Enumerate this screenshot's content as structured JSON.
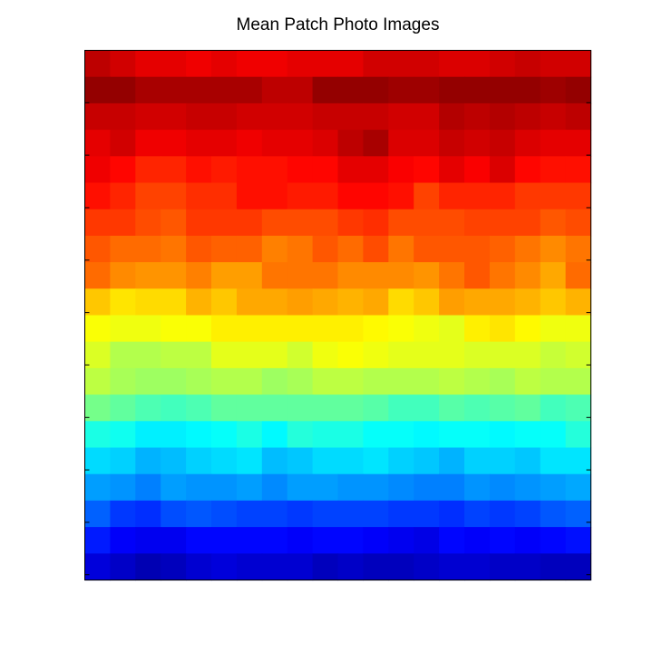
{
  "chart_data": {
    "type": "heatmap",
    "title": "Mean Patch Photo Images",
    "xlabel": "",
    "ylabel": "",
    "colormap": "jet",
    "value_range": [
      0,
      1
    ],
    "grid": false,
    "rows": 20,
    "cols": 20,
    "values": [
      [
        0.94,
        0.92,
        0.9,
        0.9,
        0.89,
        0.9,
        0.89,
        0.89,
        0.9,
        0.9,
        0.9,
        0.92,
        0.92,
        0.92,
        0.91,
        0.91,
        0.92,
        0.93,
        0.92,
        0.92
      ],
      [
        0.98,
        0.98,
        0.96,
        0.96,
        0.96,
        0.96,
        0.96,
        0.94,
        0.94,
        0.98,
        0.98,
        0.98,
        0.97,
        0.97,
        0.98,
        0.98,
        0.98,
        0.98,
        0.97,
        0.98
      ],
      [
        0.93,
        0.93,
        0.92,
        0.92,
        0.93,
        0.93,
        0.92,
        0.92,
        0.92,
        0.93,
        0.93,
        0.93,
        0.92,
        0.92,
        0.95,
        0.94,
        0.95,
        0.94,
        0.93,
        0.94
      ],
      [
        0.9,
        0.92,
        0.89,
        0.89,
        0.9,
        0.9,
        0.89,
        0.9,
        0.9,
        0.91,
        0.94,
        0.96,
        0.91,
        0.91,
        0.93,
        0.92,
        0.93,
        0.91,
        0.9,
        0.9
      ],
      [
        0.89,
        0.87,
        0.84,
        0.84,
        0.86,
        0.85,
        0.86,
        0.86,
        0.87,
        0.87,
        0.9,
        0.9,
        0.88,
        0.87,
        0.9,
        0.88,
        0.91,
        0.87,
        0.86,
        0.86
      ],
      [
        0.86,
        0.84,
        0.81,
        0.81,
        0.83,
        0.83,
        0.86,
        0.86,
        0.85,
        0.85,
        0.87,
        0.87,
        0.86,
        0.81,
        0.84,
        0.84,
        0.84,
        0.82,
        0.82,
        0.82
      ],
      [
        0.82,
        0.82,
        0.8,
        0.79,
        0.82,
        0.82,
        0.82,
        0.8,
        0.8,
        0.8,
        0.82,
        0.83,
        0.8,
        0.8,
        0.8,
        0.81,
        0.81,
        0.81,
        0.79,
        0.8
      ],
      [
        0.79,
        0.77,
        0.77,
        0.76,
        0.79,
        0.78,
        0.78,
        0.75,
        0.76,
        0.79,
        0.77,
        0.8,
        0.76,
        0.79,
        0.79,
        0.79,
        0.78,
        0.76,
        0.74,
        0.76
      ],
      [
        0.77,
        0.74,
        0.73,
        0.73,
        0.75,
        0.72,
        0.72,
        0.76,
        0.76,
        0.76,
        0.74,
        0.74,
        0.74,
        0.73,
        0.76,
        0.79,
        0.76,
        0.74,
        0.71,
        0.77
      ],
      [
        0.68,
        0.65,
        0.66,
        0.66,
        0.7,
        0.68,
        0.71,
        0.71,
        0.72,
        0.71,
        0.7,
        0.71,
        0.66,
        0.68,
        0.72,
        0.71,
        0.71,
        0.7,
        0.68,
        0.7
      ],
      [
        0.62,
        0.61,
        0.61,
        0.62,
        0.62,
        0.64,
        0.64,
        0.64,
        0.64,
        0.64,
        0.64,
        0.63,
        0.62,
        0.61,
        0.6,
        0.64,
        0.65,
        0.63,
        0.61,
        0.61
      ],
      [
        0.59,
        0.55,
        0.55,
        0.56,
        0.56,
        0.6,
        0.6,
        0.6,
        0.58,
        0.61,
        0.62,
        0.61,
        0.6,
        0.6,
        0.6,
        0.59,
        0.59,
        0.59,
        0.57,
        0.58
      ],
      [
        0.56,
        0.54,
        0.53,
        0.53,
        0.54,
        0.55,
        0.55,
        0.53,
        0.54,
        0.56,
        0.56,
        0.55,
        0.55,
        0.55,
        0.56,
        0.55,
        0.54,
        0.56,
        0.55,
        0.55
      ],
      [
        0.49,
        0.47,
        0.45,
        0.44,
        0.45,
        0.47,
        0.47,
        0.47,
        0.47,
        0.47,
        0.47,
        0.46,
        0.44,
        0.44,
        0.46,
        0.45,
        0.46,
        0.47,
        0.44,
        0.45
      ],
      [
        0.4,
        0.39,
        0.36,
        0.36,
        0.37,
        0.38,
        0.4,
        0.37,
        0.41,
        0.4,
        0.4,
        0.38,
        0.38,
        0.37,
        0.38,
        0.38,
        0.37,
        0.38,
        0.38,
        0.41
      ],
      [
        0.34,
        0.33,
        0.3,
        0.31,
        0.33,
        0.34,
        0.35,
        0.31,
        0.32,
        0.34,
        0.34,
        0.35,
        0.33,
        0.32,
        0.3,
        0.33,
        0.33,
        0.32,
        0.35,
        0.35
      ],
      [
        0.28,
        0.27,
        0.25,
        0.28,
        0.27,
        0.27,
        0.28,
        0.26,
        0.28,
        0.28,
        0.27,
        0.27,
        0.26,
        0.25,
        0.25,
        0.27,
        0.26,
        0.27,
        0.28,
        0.29
      ],
      [
        0.22,
        0.18,
        0.17,
        0.2,
        0.21,
        0.2,
        0.19,
        0.19,
        0.18,
        0.19,
        0.19,
        0.19,
        0.18,
        0.18,
        0.17,
        0.19,
        0.18,
        0.19,
        0.21,
        0.22
      ],
      [
        0.15,
        0.12,
        0.11,
        0.11,
        0.13,
        0.13,
        0.13,
        0.13,
        0.12,
        0.13,
        0.13,
        0.12,
        0.11,
        0.1,
        0.13,
        0.12,
        0.13,
        0.12,
        0.13,
        0.14
      ],
      [
        0.09,
        0.07,
        0.05,
        0.06,
        0.08,
        0.09,
        0.08,
        0.08,
        0.08,
        0.06,
        0.07,
        0.06,
        0.06,
        0.07,
        0.08,
        0.08,
        0.07,
        0.07,
        0.06,
        0.06
      ]
    ]
  }
}
